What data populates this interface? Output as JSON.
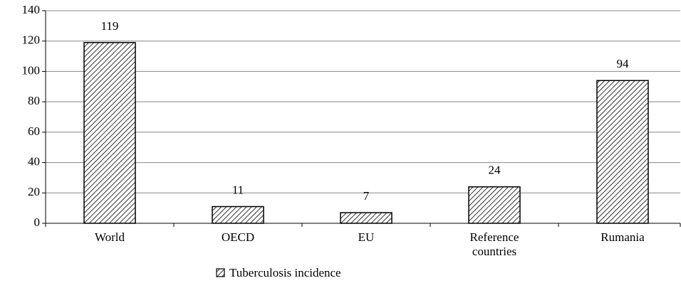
{
  "chart_data": {
    "type": "bar",
    "categories": [
      "World",
      "OECD",
      "EU",
      "Reference countries",
      "Rumania"
    ],
    "series": [
      {
        "name": "Tuberculosis incidence",
        "color": "#000000",
        "values": [
          119,
          11,
          7,
          24,
          94
        ]
      }
    ],
    "ylim": [
      0,
      140
    ],
    "yticks": [
      0,
      20,
      40,
      60,
      80,
      100,
      120,
      140
    ],
    "grid": true,
    "legend": "bottom"
  }
}
